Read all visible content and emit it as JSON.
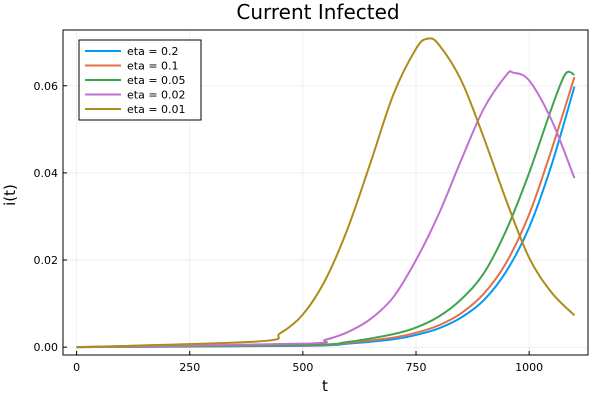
{
  "chart_data": {
    "type": "line",
    "title": "Current Infected",
    "xlabel": "t",
    "ylabel": "i(t)",
    "xlim": [
      -30,
      1130
    ],
    "ylim": [
      -0.0018,
      0.0728
    ],
    "xticks": [
      0,
      250,
      500,
      750,
      1000
    ],
    "xtick_labels": [
      "0",
      "250",
      "500",
      "750",
      "1000"
    ],
    "yticks": [
      0,
      0.02,
      0.04,
      0.06
    ],
    "ytick_labels": [
      "0.00",
      "0.02",
      "0.04",
      "0.06"
    ],
    "grid": true,
    "legend_position": "top-left",
    "series": [
      {
        "name": "eta = 0.2",
        "color": "#009AFA",
        "x": [
          0,
          500,
          600,
          700,
          750,
          800,
          850,
          900,
          950,
          1000,
          1050,
          1100
        ],
        "y": [
          0,
          0.0003,
          0.0008,
          0.0018,
          0.0028,
          0.0043,
          0.0068,
          0.0108,
          0.0175,
          0.0275,
          0.042,
          0.0598
        ]
      },
      {
        "name": "eta = 0.1",
        "color": "#E36F47",
        "x": [
          0,
          500,
          600,
          700,
          750,
          800,
          850,
          900,
          950,
          1000,
          1050,
          1100
        ],
        "y": [
          0,
          0.0004,
          0.001,
          0.0022,
          0.0033,
          0.005,
          0.0078,
          0.0123,
          0.0195,
          0.0305,
          0.0455,
          0.062
        ]
      },
      {
        "name": "eta = 0.05",
        "color": "#3EA44E",
        "x": [
          0,
          500,
          600,
          700,
          750,
          800,
          850,
          900,
          950,
          1000,
          1050,
          1080,
          1100
        ],
        "y": [
          0,
          0.0005,
          0.0012,
          0.003,
          0.0045,
          0.007,
          0.011,
          0.017,
          0.027,
          0.04,
          0.055,
          0.0627,
          0.0625
        ]
      },
      {
        "name": "eta = 0.02",
        "color": "#C271D2",
        "x": [
          0,
          500,
          550,
          600,
          650,
          700,
          750,
          800,
          850,
          900,
          950,
          965,
          1000,
          1050,
          1100
        ],
        "y": [
          0,
          0.0008,
          0.0017,
          0.0035,
          0.0065,
          0.0115,
          0.02,
          0.0305,
          0.043,
          0.0548,
          0.0625,
          0.063,
          0.0612,
          0.052,
          0.0388
        ]
      },
      {
        "name": "eta = 0.01",
        "color": "#AC8D18",
        "x": [
          0,
          400,
          450,
          500,
          550,
          600,
          650,
          700,
          750,
          775,
          800,
          850,
          900,
          950,
          1000,
          1050,
          1100
        ],
        "y": [
          0,
          0.0013,
          0.0032,
          0.0075,
          0.0155,
          0.0275,
          0.0425,
          0.058,
          0.0685,
          0.0708,
          0.0695,
          0.0612,
          0.048,
          0.0335,
          0.0205,
          0.0125,
          0.0073
        ]
      }
    ]
  }
}
